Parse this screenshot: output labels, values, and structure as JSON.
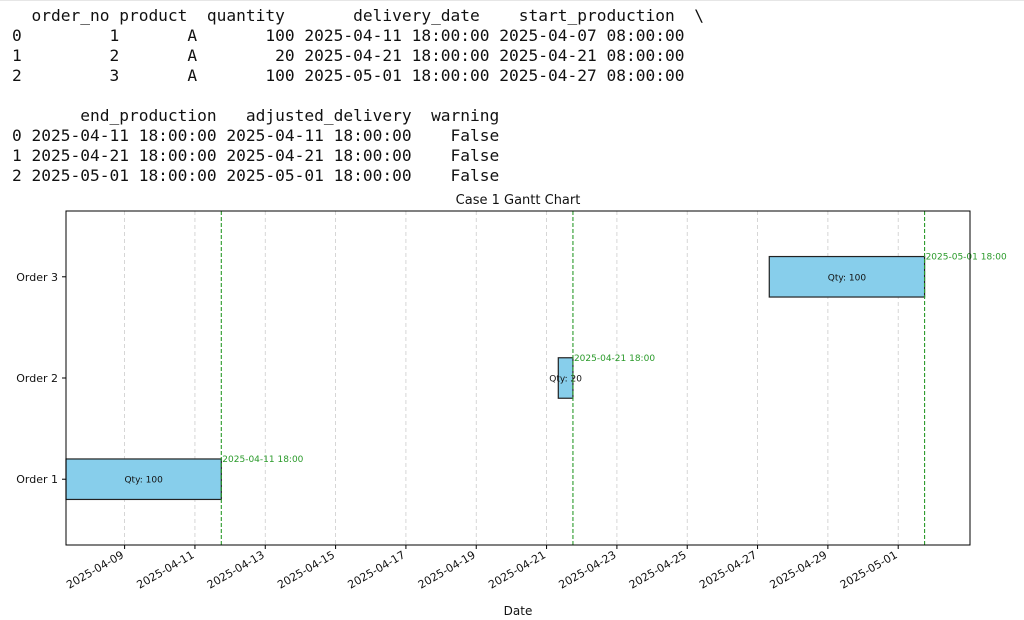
{
  "dataframe": {
    "block1": {
      "header": "  order_no product  quantity       delivery_date    start_production  \\",
      "rows": [
        "0         1       A       100 2025-04-11 18:00:00 2025-04-07 08:00:00",
        "1         2       A        20 2025-04-21 18:00:00 2025-04-21 08:00:00",
        "2         3       A       100 2025-05-01 18:00:00 2025-04-27 08:00:00"
      ]
    },
    "block2": {
      "header": "       end_production   adjusted_delivery  warning",
      "rows": [
        "0 2025-04-11 18:00:00 2025-04-11 18:00:00    False",
        "1 2025-04-21 18:00:00 2025-04-21 18:00:00    False",
        "2 2025-05-01 18:00:00 2025-05-01 18:00:00    False"
      ]
    }
  },
  "chart_data": {
    "type": "gantt",
    "title": "Case 1 Gantt Chart",
    "xlabel": "Date",
    "ylabel": "",
    "xlim": [
      "2025-04-07T08:00",
      "2025-05-03T01:00"
    ],
    "grid": "x-dashed",
    "x_ticks": [
      "2025-04-09",
      "2025-04-11",
      "2025-04-13",
      "2025-04-15",
      "2025-04-17",
      "2025-04-19",
      "2025-04-21",
      "2025-04-23",
      "2025-04-25",
      "2025-04-27",
      "2025-04-29",
      "2025-05-01"
    ],
    "categories": [
      "Order 1",
      "Order 2",
      "Order 3"
    ],
    "bars": [
      {
        "category": "Order 1",
        "start": "2025-04-07T08:00",
        "end": "2025-04-11T18:00",
        "label": "Qty: 100"
      },
      {
        "category": "Order 2",
        "start": "2025-04-21T08:00",
        "end": "2025-04-21T18:00",
        "label": "Qty: 20"
      },
      {
        "category": "Order 3",
        "start": "2025-04-27T08:00",
        "end": "2025-05-01T18:00",
        "label": "Qty: 100"
      }
    ],
    "delivery_lines": [
      {
        "date": "2025-04-11T18:00",
        "label": "2025-04-11 18:00"
      },
      {
        "date": "2025-04-21T18:00",
        "label": "2025-04-21 18:00"
      },
      {
        "date": "2025-05-01T18:00",
        "label": "2025-05-01 18:00"
      }
    ],
    "colors": {
      "bar": "#87ceeb",
      "bar_edge": "#222222",
      "delivery_line": "#2a9a2a",
      "grid": "#cccccc"
    }
  }
}
